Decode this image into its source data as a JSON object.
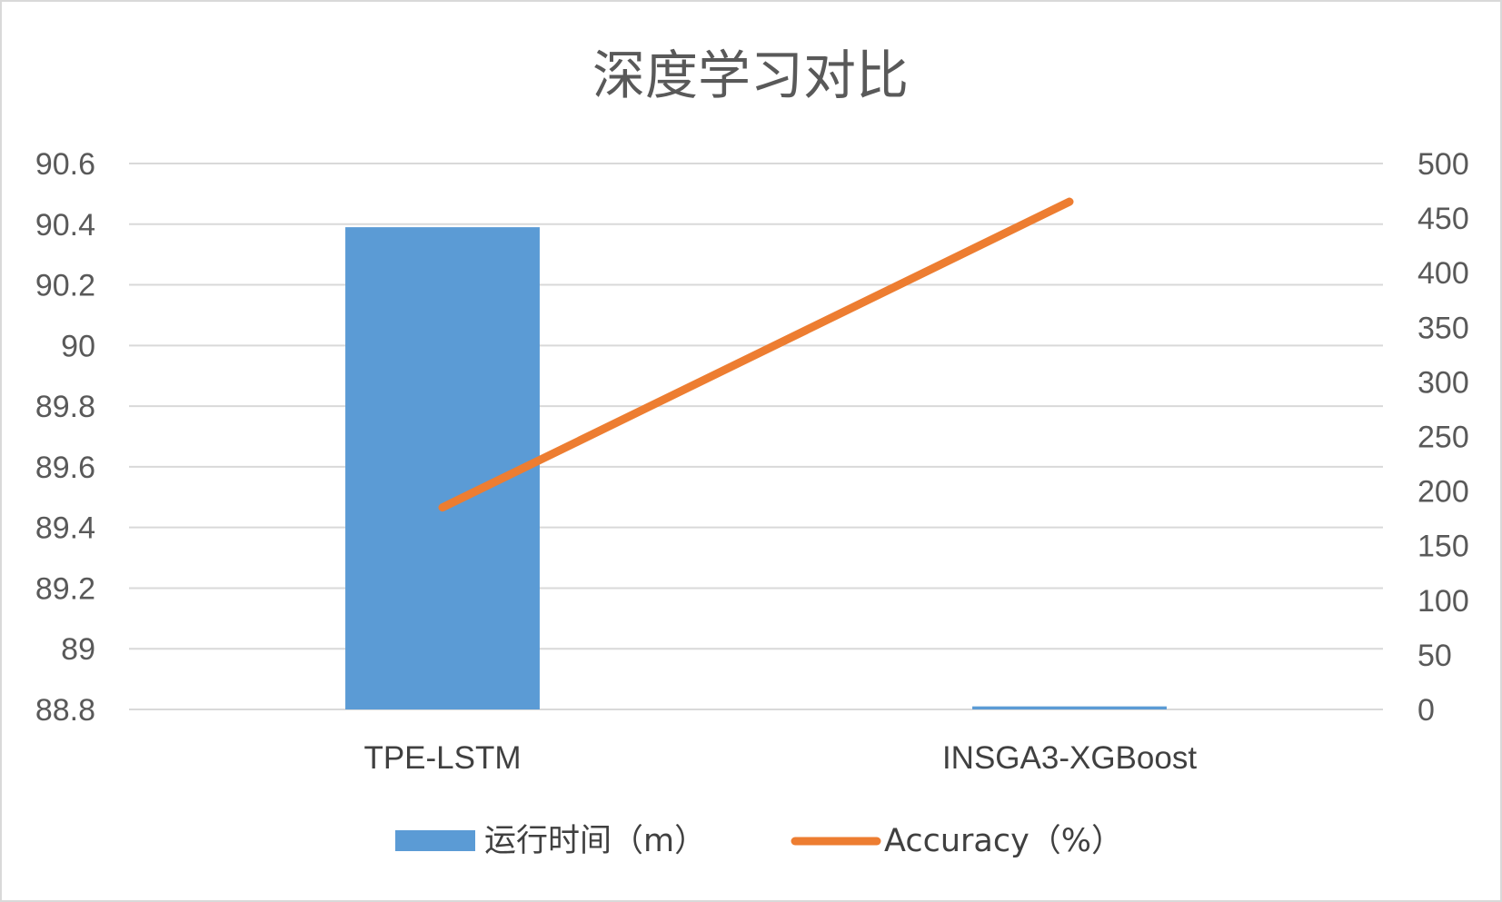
{
  "chart_data": {
    "type": "bar",
    "title": "深度学习对比",
    "categories": [
      "TPE-LSTM",
      "INSGA3-XGBoost"
    ],
    "series": [
      {
        "name": "运行时间（m）",
        "type": "bar",
        "axis": "left",
        "color": "#5b9bd5",
        "values": [
          90.39,
          88.81
        ]
      },
      {
        "name": "Accuracy（%）",
        "type": "line",
        "axis": "right",
        "color": "#ed7d31",
        "values": [
          185,
          465
        ]
      }
    ],
    "y_left": {
      "min": 88.8,
      "max": 90.6,
      "ticks": [
        "88.8",
        "89",
        "89.2",
        "89.4",
        "89.6",
        "89.8",
        "90",
        "90.2",
        "90.4",
        "90.6"
      ],
      "tick_values": [
        88.8,
        89.0,
        89.2,
        89.4,
        89.6,
        89.8,
        90.0,
        90.2,
        90.4,
        90.6
      ]
    },
    "y_right": {
      "min": 0,
      "max": 500,
      "ticks": [
        "0",
        "50",
        "100",
        "150",
        "200",
        "250",
        "300",
        "350",
        "400",
        "450",
        "500"
      ],
      "tick_values": [
        0,
        50,
        100,
        150,
        200,
        250,
        300,
        350,
        400,
        450,
        500
      ]
    },
    "grid": true,
    "legend_position": "bottom"
  }
}
